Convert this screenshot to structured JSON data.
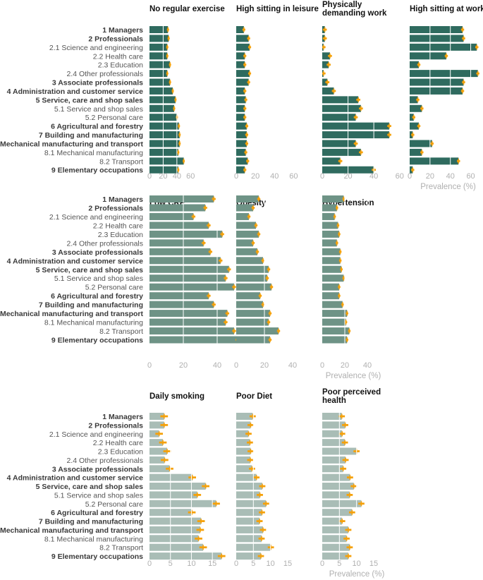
{
  "categories": [
    {
      "label": "1 Managers",
      "bold": true
    },
    {
      "label": "2 Professionals",
      "bold": true
    },
    {
      "label": "2.1 Science and engineering",
      "bold": false
    },
    {
      "label": "2.2 Health care",
      "bold": false
    },
    {
      "label": "2.3 Education",
      "bold": false
    },
    {
      "label": "2.4 Other professionals",
      "bold": false
    },
    {
      "label": "3 Associate professionals",
      "bold": true
    },
    {
      "label": "4 Administration and customer service",
      "bold": true
    },
    {
      "label": "5 Service, care and shop sales",
      "bold": true
    },
    {
      "label": "5.1 Service and shop sales",
      "bold": false
    },
    {
      "label": "5.2 Personal care",
      "bold": false
    },
    {
      "label": "6 Agricultural and forestry",
      "bold": true
    },
    {
      "label": "7 Building and manufacturing",
      "bold": true
    },
    {
      "label": "8 Mechanical manufacturing and transport",
      "bold": true
    },
    {
      "label": "8.1 Mechanical manufacturing",
      "bold": false
    },
    {
      "label": "8.2 Transport",
      "bold": false
    },
    {
      "label": "9 Elementary occupations",
      "bold": true
    }
  ],
  "axis_label": "Prevalence (%)",
  "colors": {
    "row1": "#2f6b5f",
    "row2": "#6e9386",
    "row3": "#a9bdb6",
    "error": "#f5a10a",
    "grid": "#ffffff",
    "tick": "#b0b0b0"
  },
  "chart_data": [
    {
      "type": "bar",
      "orientation": "horizontal",
      "title": "No regular exercise",
      "row": 1,
      "ticks": [
        0,
        20,
        40,
        60
      ],
      "xlim": [
        0,
        70
      ],
      "values": [
        27,
        28,
        26,
        26,
        30,
        26,
        30,
        34,
        38,
        36,
        40,
        43,
        44,
        44,
        42,
        50,
        42
      ]
    },
    {
      "type": "bar",
      "orientation": "horizontal",
      "title": "High sitting in leisure",
      "row": 1,
      "ticks": [
        0,
        20,
        40,
        60
      ],
      "xlim": [
        0,
        70
      ],
      "values": [
        8,
        13,
        14,
        9,
        9,
        14,
        13,
        9,
        10,
        9,
        9,
        11,
        11,
        11,
        10,
        12,
        9
      ]
    },
    {
      "type": "bar",
      "orientation": "horizontal",
      "title": "Physically demanding work",
      "row": 1,
      "ticks": [
        0,
        20,
        40,
        60
      ],
      "xlim": [
        0,
        70
      ],
      "values": [
        2,
        2,
        1,
        6,
        5,
        1,
        4,
        9,
        28,
        30,
        26,
        52,
        52,
        26,
        30,
        14,
        40
      ]
    },
    {
      "type": "bar",
      "orientation": "horizontal",
      "title": "High sitting at work",
      "row": 1,
      "ticks": [
        0,
        20,
        40,
        60
      ],
      "xlim": [
        0,
        70
      ],
      "show_axis_label": true,
      "values": [
        52,
        53,
        66,
        36,
        9,
        67,
        53,
        52,
        8,
        12,
        4,
        9,
        3,
        22,
        12,
        48,
        3
      ]
    },
    {
      "type": "bar",
      "orientation": "horizontal",
      "title": "Low CRF",
      "row": 2,
      "ticks": [
        0,
        20,
        40
      ],
      "xlim": [
        0,
        50
      ],
      "values": [
        38,
        33,
        26,
        35,
        43,
        32,
        36,
        42,
        47,
        45,
        50,
        35,
        38,
        46,
        45,
        50,
        52
      ]
    },
    {
      "type": "bar",
      "orientation": "horizontal",
      "title": "Obesity",
      "row": 2,
      "ticks": [
        0,
        20,
        40
      ],
      "xlim": [
        0,
        50
      ],
      "values": [
        16,
        12,
        9,
        14,
        16,
        12,
        15,
        19,
        23,
        22,
        25,
        17,
        19,
        24,
        23,
        30,
        24
      ]
    },
    {
      "type": "bar",
      "orientation": "horizontal",
      "title": "Hypertension",
      "row": 2,
      "ticks": [
        0,
        20,
        40
      ],
      "xlim": [
        0,
        50
      ],
      "show_axis_label": true,
      "values": [
        19,
        13,
        11,
        14,
        15,
        13,
        16,
        16,
        17,
        19,
        15,
        15,
        18,
        22,
        21,
        24,
        22
      ]
    },
    {
      "type": "bar",
      "orientation": "horizontal",
      "title": "Daily smoking",
      "row": 3,
      "ticks": [
        0,
        5,
        10,
        15
      ],
      "xlim": [
        0,
        18.5
      ],
      "values": [
        3.5,
        3.5,
        2.3,
        3.2,
        4.2,
        3.6,
        4.8,
        10.2,
        13.4,
        11.4,
        15.9,
        10.1,
        12.3,
        12.1,
        11.7,
        12.8,
        17.2
      ]
    },
    {
      "type": "bar",
      "orientation": "horizontal",
      "title": "Poor Diet",
      "row": 3,
      "ticks": [
        0,
        5,
        10,
        15
      ],
      "xlim": [
        0,
        18.5
      ],
      "values": [
        4.8,
        4.2,
        3.6,
        4.0,
        4.2,
        4.1,
        4.6,
        5.9,
        7.6,
        6.9,
        8.7,
        7.5,
        6.8,
        7.8,
        7.4,
        10.1,
        7.2
      ]
    },
    {
      "type": "bar",
      "orientation": "horizontal",
      "title": "Poor perceived health",
      "row": 3,
      "ticks": [
        0,
        5,
        10,
        15
      ],
      "xlim": [
        0,
        18.5
      ],
      "show_axis_label": true,
      "values": [
        5.7,
        6.7,
        5.8,
        6.6,
        10.0,
        6.8,
        6.1,
        8.1,
        9.2,
        8.0,
        11.4,
        8.7,
        5.8,
        7.6,
        7.1,
        8.0,
        7.6
      ]
    }
  ]
}
